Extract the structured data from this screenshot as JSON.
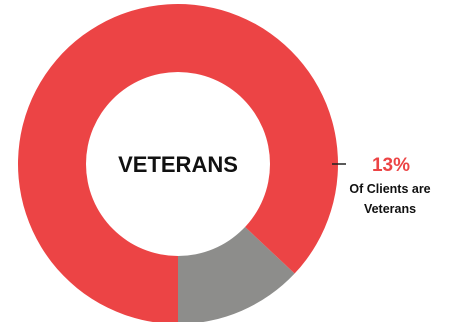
{
  "chart_data": {
    "type": "pie",
    "style": "donut",
    "center_label": "VETERANS",
    "slices": [
      {
        "value": 13,
        "color": "#8d8d8b"
      },
      {
        "value": 87,
        "color": "#ec4445"
      }
    ],
    "annotation": {
      "value": "13%",
      "line1": "Of Clients are",
      "line2": "Veterans",
      "color": "#ec4445"
    }
  }
}
